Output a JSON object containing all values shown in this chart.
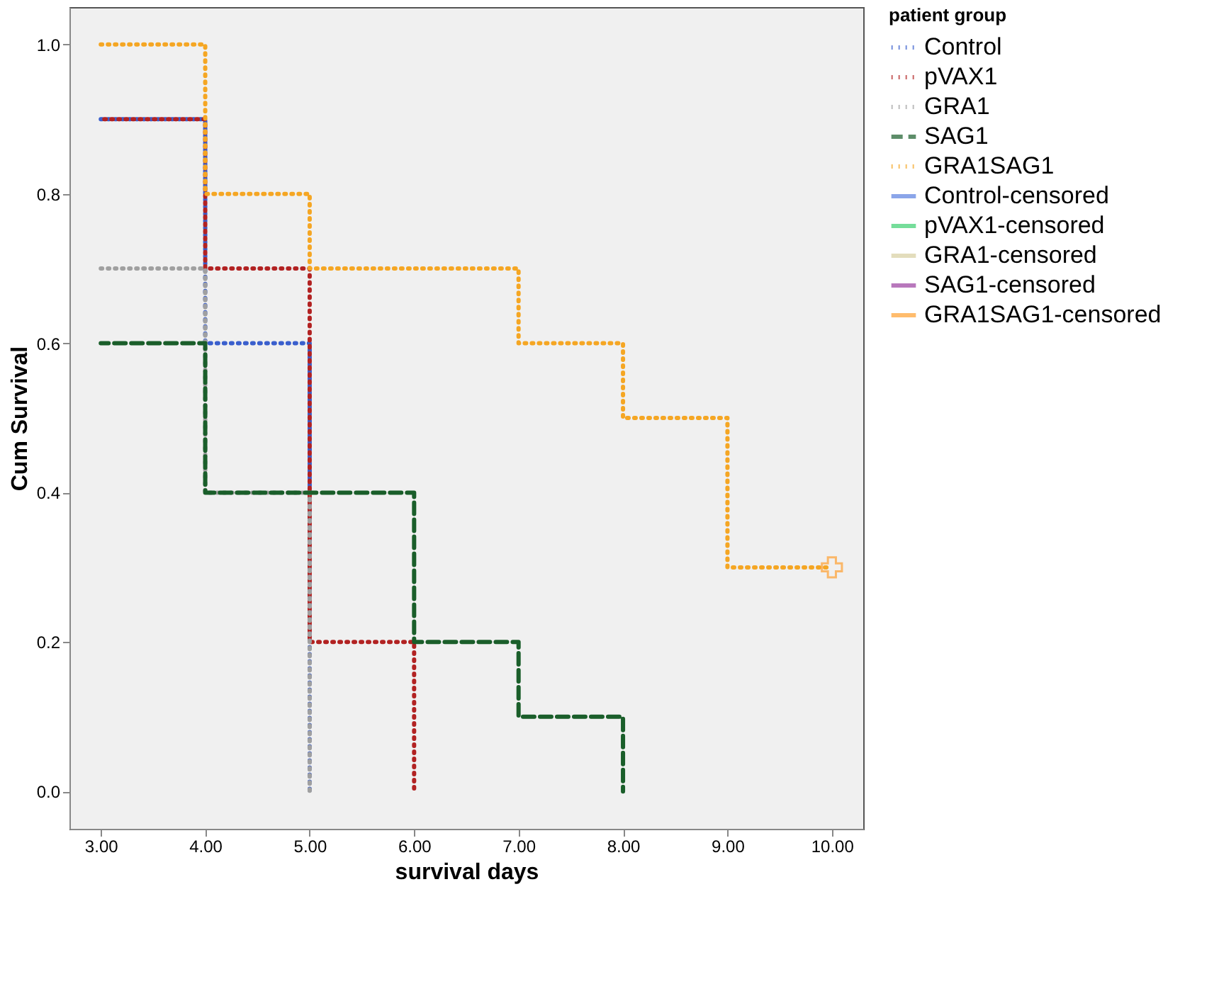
{
  "chart_data": {
    "type": "step",
    "xlabel": "survival days",
    "ylabel": "Cum Survival",
    "legend_title": "patient group",
    "legend": "right",
    "grid": false,
    "xlim": [
      2.7,
      10.3
    ],
    "ylim": [
      -0.05,
      1.05
    ],
    "xticks": [
      {
        "value": 3,
        "label": "3.00"
      },
      {
        "value": 4,
        "label": "4.00"
      },
      {
        "value": 5,
        "label": "5.00"
      },
      {
        "value": 6,
        "label": "6.00"
      },
      {
        "value": 7,
        "label": "7.00"
      },
      {
        "value": 8,
        "label": "8.00"
      },
      {
        "value": 9,
        "label": "9.00"
      },
      {
        "value": 10,
        "label": "10.00"
      }
    ],
    "yticks": [
      {
        "value": 0,
        "label": "0.0"
      },
      {
        "value": 0.2,
        "label": "0.2"
      },
      {
        "value": 0.4,
        "label": "0.4"
      },
      {
        "value": 0.6,
        "label": "0.6"
      },
      {
        "value": 0.8,
        "label": "0.8"
      },
      {
        "value": 1,
        "label": "1.0"
      }
    ],
    "series": [
      {
        "name": "Control",
        "color": "#3a5fcd",
        "line_style": "dotted",
        "x": [
          3,
          4,
          5
        ],
        "values": [
          0.9,
          0.6,
          0
        ]
      },
      {
        "name": "pVAX1",
        "color": "#b22222",
        "line_style": "dotted",
        "x": [
          3,
          4,
          5,
          6
        ],
        "values": [
          0.9,
          0.7,
          0.2,
          0
        ]
      },
      {
        "name": "GRA1",
        "color": "#a0a0a0",
        "line_style": "dotted",
        "x": [
          3,
          4,
          5
        ],
        "values": [
          0.7,
          0.4,
          0
        ]
      },
      {
        "name": "SAG1",
        "color": "#1a5e2a",
        "line_style": "dashed",
        "x": [
          3,
          4,
          6,
          7,
          8
        ],
        "values": [
          0.6,
          0.4,
          0.2,
          0.1,
          0
        ]
      },
      {
        "name": "GRA1SAG1",
        "color": "#f5a623",
        "line_style": "dotted",
        "x": [
          3,
          4,
          5,
          7,
          8,
          9,
          10
        ],
        "values": [
          1.0,
          0.8,
          0.7,
          0.6,
          0.5,
          0.3,
          0.3
        ]
      },
      {
        "name": "Control-censored",
        "type": "scatter",
        "marker": "cross",
        "color": "#5b7fe0"
      },
      {
        "name": "pVAX1-censored",
        "type": "scatter",
        "marker": "cross",
        "color": "#3cd070"
      },
      {
        "name": "GRA1-censored",
        "type": "scatter",
        "marker": "cross",
        "color": "#d8d0a0"
      },
      {
        "name": "SAG1-censored",
        "type": "scatter",
        "marker": "cross",
        "color": "#9b3fa0"
      },
      {
        "name": "GRA1SAG1-censored",
        "type": "scatter",
        "marker": "cross",
        "color": "#ffa030",
        "x": [
          10
        ],
        "values": [
          0.3
        ]
      }
    ]
  }
}
